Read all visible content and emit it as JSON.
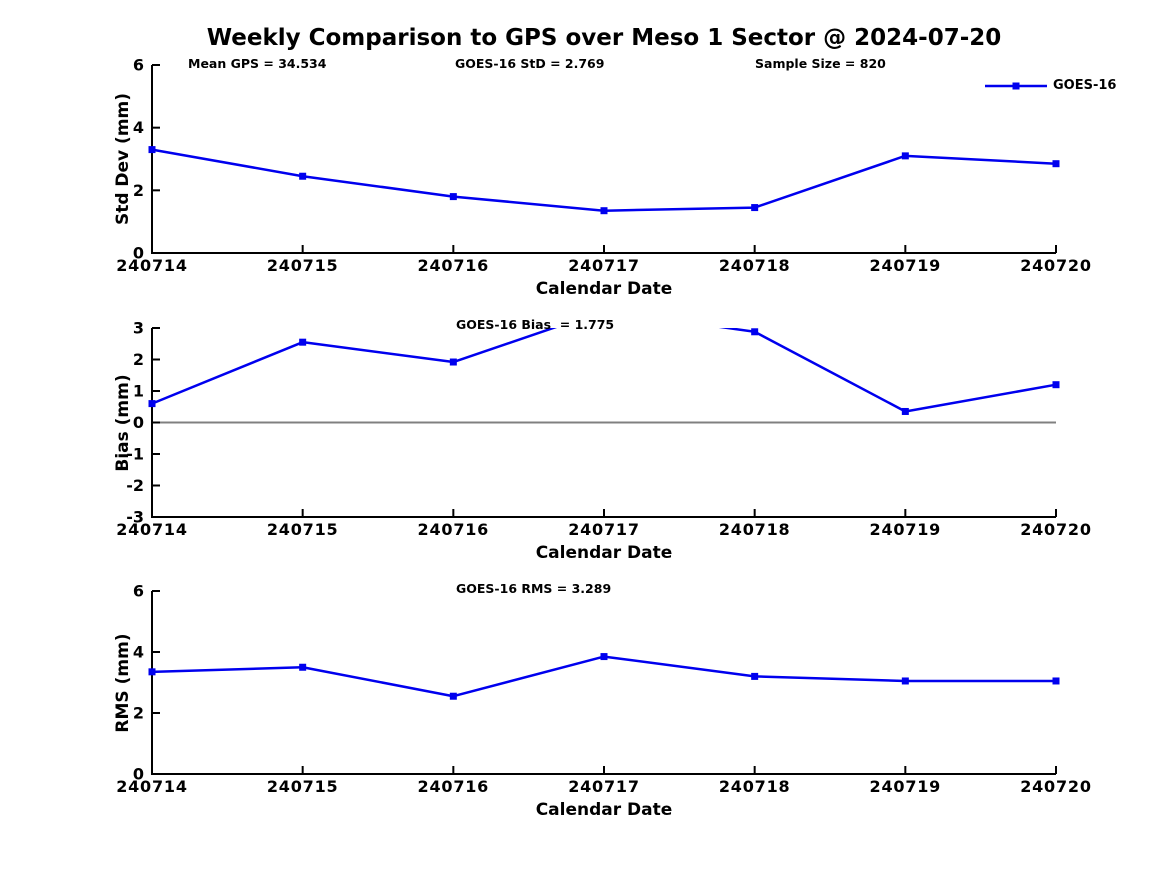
{
  "title": "Weekly Comparison to GPS over Meso 1 Sector @ 2024-07-20",
  "colors": {
    "series": "#0000EE",
    "zero_line": "#808080",
    "axis": "#000000",
    "background": "#FFFFFF"
  },
  "legend": {
    "label": "GOES-16"
  },
  "chart_data": [
    {
      "type": "line",
      "title": "",
      "ylabel": "Std Dev (mm)",
      "xlabel": "Calendar Date",
      "categories": [
        "240714",
        "240715",
        "240716",
        "240717",
        "240718",
        "240719",
        "240720"
      ],
      "series": [
        {
          "name": "GOES-16",
          "values": [
            3.3,
            2.45,
            1.8,
            1.35,
            1.45,
            3.1,
            2.85
          ]
        }
      ],
      "ylim": [
        0,
        6
      ],
      "yticks": [
        0,
        2,
        4,
        6
      ],
      "grid": false,
      "legend_position": "top-right",
      "annotations": [
        "Mean GPS = 34.534",
        "GOES-16 StD = 2.769",
        "Sample Size = 820"
      ]
    },
    {
      "type": "line",
      "title": "",
      "ylabel": "Bias (mm)",
      "xlabel": "Calendar Date",
      "categories": [
        "240714",
        "240715",
        "240716",
        "240717",
        "240718",
        "240719",
        "240720"
      ],
      "series": [
        {
          "name": "GOES-16",
          "values": [
            0.6,
            2.55,
            1.92,
            3.55,
            2.88,
            0.35,
            1.2
          ]
        }
      ],
      "ylim": [
        -3,
        3
      ],
      "yticks": [
        -3,
        -2,
        -1,
        0,
        1,
        2,
        3
      ],
      "zero_line": true,
      "grid": false,
      "annotations": [
        "GOES-16 Bias  = 1.775"
      ]
    },
    {
      "type": "line",
      "title": "",
      "ylabel": "RMS (mm)",
      "xlabel": "Calendar Date",
      "categories": [
        "240714",
        "240715",
        "240716",
        "240717",
        "240718",
        "240719",
        "240720"
      ],
      "series": [
        {
          "name": "GOES-16",
          "values": [
            3.35,
            3.5,
            2.55,
            3.85,
            3.2,
            3.05,
            3.05
          ]
        }
      ],
      "ylim": [
        0,
        6
      ],
      "yticks": [
        0,
        2,
        4,
        6
      ],
      "grid": false,
      "annotations": [
        "GOES-16 RMS = 3.289"
      ]
    }
  ]
}
